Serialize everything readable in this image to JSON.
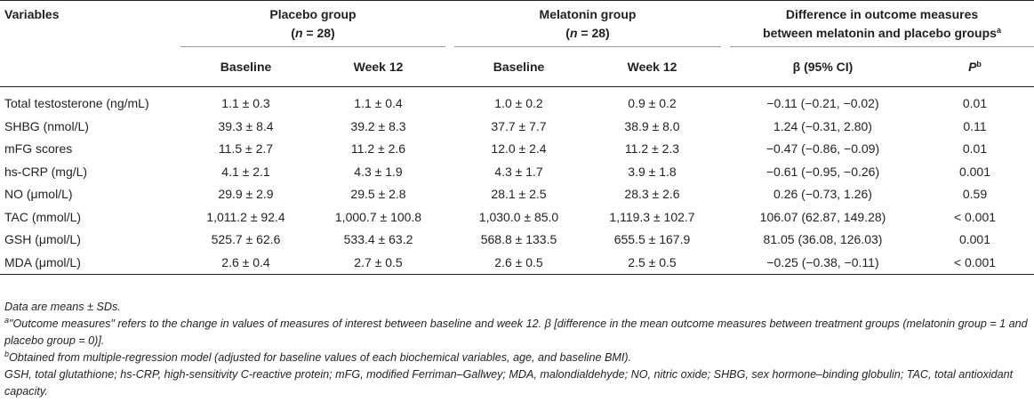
{
  "header": {
    "variables": "Variables",
    "placebo_group": "Placebo group",
    "placebo_n_pre": "(",
    "placebo_n_var": "n",
    "placebo_n_post": " = 28)",
    "melatonin_group": "Melatonin group",
    "melatonin_n_pre": "(",
    "melatonin_n_var": "n",
    "melatonin_n_post": " = 28)",
    "difference_line1": "Difference in outcome measures",
    "difference_line2": "between melatonin and placebo groups",
    "difference_sup": "a",
    "baseline": "Baseline",
    "week12": "Week 12",
    "beta_ci": "β (95% CI)",
    "p_label": "P",
    "p_sup": "b"
  },
  "rows": [
    {
      "variable": "Total testosterone (ng/mL)",
      "pb": "1.1 ± 0.3",
      "pw": "1.1 ± 0.4",
      "mb": "1.0 ± 0.2",
      "mw": "0.9 ± 0.2",
      "beta": "−0.11 (−0.21, −0.02)",
      "p": "0.01"
    },
    {
      "variable": "SHBG (nmol/L)",
      "pb": "39.3 ± 8.4",
      "pw": "39.2 ± 8.3",
      "mb": "37.7 ± 7.7",
      "mw": "38.9 ± 8.0",
      "beta": "1.24 (−0.31, 2.80)",
      "p": "0.11"
    },
    {
      "variable": "mFG scores",
      "pb": "11.5 ± 2.7",
      "pw": "11.2 ± 2.6",
      "mb": "12.0 ± 2.4",
      "mw": "11.2 ± 2.3",
      "beta": "−0.47 (−0.86, −0.09)",
      "p": "0.01"
    },
    {
      "variable": "hs-CRP (mg/L)",
      "pb": "4.1 ± 2.1",
      "pw": "4.3 ± 1.9",
      "mb": "4.3 ± 1.7",
      "mw": "3.9 ± 1.8",
      "beta": "−0.61 (−0.95, −0.26)",
      "p": "0.001"
    },
    {
      "variable": "NO (μmol/L)",
      "pb": "29.9 ± 2.9",
      "pw": "29.5 ± 2.8",
      "mb": "28.1 ± 2.5",
      "mw": "28.3 ± 2.6",
      "beta": "0.26 (−0.73, 1.26)",
      "p": "0.59"
    },
    {
      "variable": "TAC (mmol/L)",
      "pb": "1,011.2 ± 92.4",
      "pw": "1,000.7 ± 100.8",
      "mb": "1,030.0 ± 85.0",
      "mw": "1,119.3 ± 102.7",
      "beta": "106.07 (62.87, 149.28)",
      "p": "< 0.001"
    },
    {
      "variable": "GSH (μmol/L)",
      "pb": "525.7 ± 62.6",
      "pw": "533.4 ± 63.2",
      "mb": "568.8 ± 133.5",
      "mw": "655.5 ± 167.9",
      "beta": "81.05 (36.08, 126.03)",
      "p": "0.001"
    },
    {
      "variable": "MDA (μmol/L)",
      "pb": "2.6 ± 0.4",
      "pw": "2.7 ± 0.5",
      "mb": "2.6 ± 0.5",
      "mw": "2.5 ± 0.5",
      "beta": "−0.25 (−0.38, −0.11)",
      "p": "< 0.001"
    }
  ],
  "notes": {
    "line1": "Data are means ± SDs.",
    "line2_sup": "a",
    "line2": "\"Outcome measures\" refers to the change in values of measures of interest between baseline and week 12. β [difference in the mean outcome measures between treatment groups (melatonin group = 1 and placebo group = 0)].",
    "line3_sup": "b",
    "line3": "Obtained from multiple-regression model (adjusted for baseline values of each biochemical variables, age, and baseline BMI).",
    "line4": "GSH, total glutathione; hs-CRP, high-sensitivity C-reactive protein; mFG, modified Ferriman–Gallwey; MDA, malondialdehyde; NO, nitric oxide; SHBG, sex hormone–binding globulin; TAC, total antioxidant capacity."
  }
}
